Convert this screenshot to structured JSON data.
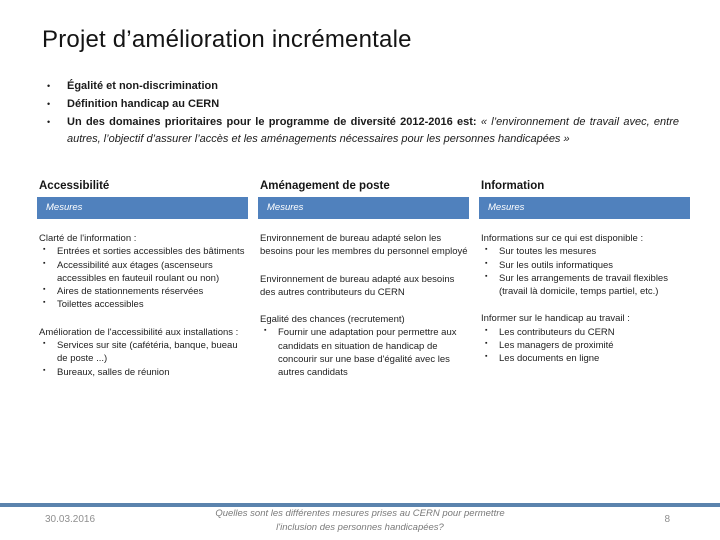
{
  "title": "Projet d’amélioration incrémentale",
  "glyphs": {
    "level1_bullet": "•",
    "level2_bullet": "▪"
  },
  "colors": {
    "accent_blue": "#5081bd",
    "footer_line_blue": "#5b83ad"
  },
  "intro_bullets": [
    {
      "segments": [
        {
          "text": "Égalité et non-discrimination",
          "style": "bold"
        }
      ]
    },
    {
      "segments": [
        {
          "text": "Définition handicap au CERN",
          "style": "bold"
        }
      ]
    },
    {
      "justify": true,
      "segments": [
        {
          "text": "Un des domaines prioritaires pour le programme de diversité 2012-2016 est: ",
          "style": "bold"
        },
        {
          "text": "« l’environnement de travail avec, entre autres, l’objectif d’assurer l’accès et les aménagements nécessaires pour les personnes handicapées »",
          "style": "italic"
        }
      ]
    }
  ],
  "columns": [
    {
      "header": "Accessibilité",
      "measures_label": "Mesures",
      "blocks": [
        {
          "intro": "Clarté de l'information :",
          "items": [
            "Entrées et sorties accessibles des bâtiments",
            "Accessibilité aux étages (ascenseurs accessibles en fauteuil roulant ou non)",
            "Aires de stationnements réservées",
            "Toilettes accessibles"
          ]
        },
        {
          "intro": "Amélioration de l'accessibilité aux installations :",
          "items": [
            "Services sur site (cafétéria, banque, bueau de poste ...)",
            "Bureaux, salles de réunion"
          ]
        }
      ]
    },
    {
      "header": "Aménagement de poste",
      "measures_label": "Mesures",
      "blocks": [
        {
          "intro": "Environnement de bureau adapté selon les besoins pour les membres du personnel employé",
          "items": []
        },
        {
          "intro": "Environnement de bureau adapté aux besoins des autres contributeurs du CERN",
          "items": []
        },
        {
          "intro": "Egalité des chances (recrutement)",
          "items": [
            "Fournir une adaptation pour permettre aux candidats en situation de handicap de concourir sur une base d'égalité avec les autres candidats"
          ]
        }
      ]
    },
    {
      "header": "Information",
      "measures_label": "Mesures",
      "blocks": [
        {
          "intro": "Informations sur ce qui est disponible :",
          "items": [
            "Sur toutes les mesures",
            "Sur les outils informatiques",
            "Sur les arrangements de travail flexibles (travail là domicile, temps partiel, etc.)"
          ]
        },
        {
          "intro": "Informer sur le handicap au travail :",
          "items": [
            "Les contributeurs du CERN",
            "Les managers de proximité",
            "Les documents en ligne"
          ]
        }
      ]
    }
  ],
  "footer": {
    "date": "30.03.2016",
    "question": "Quelles sont les différentes mesures prises au CERN pour permettre l'inclusion des personnes handicapées?",
    "page_number": "8"
  }
}
